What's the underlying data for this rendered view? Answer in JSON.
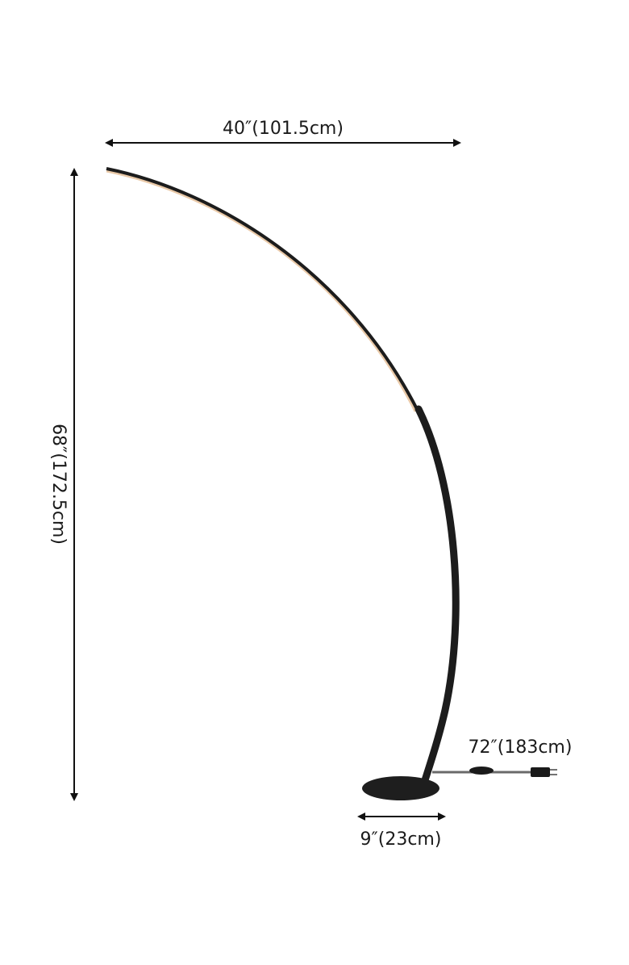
{
  "dimensions": {
    "width_label": "40″(101.5cm)",
    "height_label": "68″(172.5cm)",
    "cord_label": "72″(183cm)",
    "base_label": "9″(23cm)"
  },
  "colors": {
    "lamp": "#1c1c1c",
    "led_glow": "#e9c9a8",
    "arrow": "#111111",
    "cord": "#6a6a6a"
  }
}
